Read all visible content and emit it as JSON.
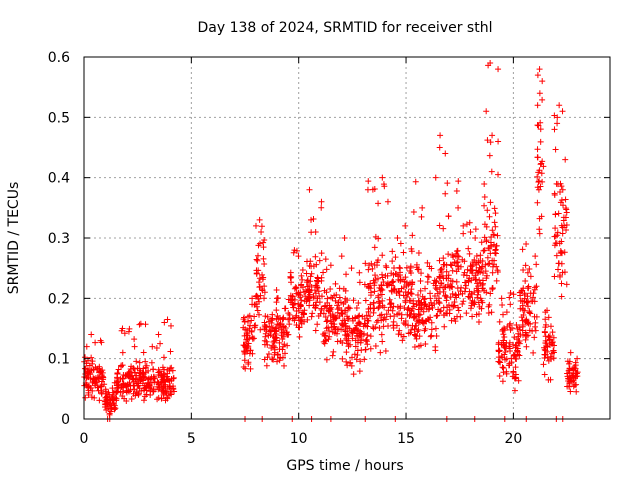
{
  "chart_data": {
    "type": "scatter",
    "title": "Day 138 of 2024, SRMTID for receiver sthl",
    "xlabel": "GPS time / hours",
    "ylabel": "SRMTID / TECUs",
    "xlim": [
      0,
      24.5
    ],
    "ylim": [
      0,
      0.6
    ],
    "xticks": [
      0,
      5,
      10,
      15,
      20
    ],
    "xtick_labels": [
      "0",
      "5",
      "10",
      "15",
      "20"
    ],
    "yticks": [
      0,
      0.1,
      0.2,
      0.3,
      0.4,
      0.5,
      0.6
    ],
    "ytick_labels": [
      "0",
      "0.1",
      "0.2",
      "0.3",
      "0.4",
      "0.5",
      "0.6"
    ],
    "grid": true,
    "marker": "+",
    "color": "#ff0000",
    "series": [
      {
        "name": "sthl",
        "segments": [
          {
            "x_start": 0.0,
            "x_end": 0.95,
            "y_base": 0.07,
            "y_spread": 0.03,
            "y_max": 0.14,
            "spikes": [
              0.13,
              0.14,
              0.12
            ]
          },
          {
            "x_start": 0.95,
            "x_end": 1.5,
            "y_base": 0.03,
            "y_spread": 0.02,
            "y_max": 0.07,
            "spikes": [
              0.06
            ]
          },
          {
            "x_start": 1.5,
            "x_end": 2.5,
            "y_base": 0.06,
            "y_spread": 0.025,
            "y_max": 0.15,
            "spikes": [
              0.15,
              0.12,
              0.11
            ]
          },
          {
            "x_start": 2.5,
            "x_end": 4.2,
            "y_base": 0.06,
            "y_spread": 0.025,
            "y_max": 0.17,
            "spikes": [
              0.165,
              0.14,
              0.12
            ]
          },
          {
            "x_start": 7.4,
            "x_end": 8.0,
            "y_base": 0.13,
            "y_spread": 0.05,
            "y_max": 0.2,
            "spikes": [
              0.2,
              0.19
            ]
          },
          {
            "x_start": 8.0,
            "x_end": 8.4,
            "y_base": 0.22,
            "y_spread": 0.07,
            "y_max": 0.33,
            "spikes": [
              0.33,
              0.32,
              0.31
            ]
          },
          {
            "x_start": 8.4,
            "x_end": 9.5,
            "y_base": 0.14,
            "y_spread": 0.04,
            "y_max": 0.22,
            "spikes": [
              0.21,
              0.2
            ]
          },
          {
            "x_start": 9.5,
            "x_end": 10.3,
            "y_base": 0.19,
            "y_spread": 0.05,
            "y_max": 0.28,
            "spikes": [
              0.28,
              0.27
            ]
          },
          {
            "x_start": 10.3,
            "x_end": 11.1,
            "y_base": 0.21,
            "y_spread": 0.06,
            "y_max": 0.38,
            "spikes": [
              0.38,
              0.36,
              0.33
            ]
          },
          {
            "x_start": 11.1,
            "x_end": 12.2,
            "y_base": 0.16,
            "y_spread": 0.05,
            "y_max": 0.3,
            "spikes": [
              0.3,
              0.27
            ]
          },
          {
            "x_start": 12.2,
            "x_end": 13.2,
            "y_base": 0.14,
            "y_spread": 0.05,
            "y_max": 0.26,
            "spikes": [
              0.25,
              0.24
            ]
          },
          {
            "x_start": 13.2,
            "x_end": 14.2,
            "y_base": 0.2,
            "y_spread": 0.07,
            "y_max": 0.4,
            "spikes": [
              0.4,
              0.38,
              0.36
            ]
          },
          {
            "x_start": 14.2,
            "x_end": 15.3,
            "y_base": 0.2,
            "y_spread": 0.06,
            "y_max": 0.32,
            "spikes": [
              0.32,
              0.3
            ]
          },
          {
            "x_start": 15.3,
            "x_end": 16.5,
            "y_base": 0.18,
            "y_spread": 0.06,
            "y_max": 0.4,
            "spikes": [
              0.4,
              0.35
            ]
          },
          {
            "x_start": 16.5,
            "x_end": 17.6,
            "y_base": 0.22,
            "y_spread": 0.07,
            "y_max": 0.47,
            "spikes": [
              0.47,
              0.45,
              0.44
            ]
          },
          {
            "x_start": 17.6,
            "x_end": 18.6,
            "y_base": 0.22,
            "y_spread": 0.06,
            "y_max": 0.33,
            "spikes": [
              0.32,
              0.3
            ]
          },
          {
            "x_start": 18.6,
            "x_end": 19.3,
            "y_base": 0.27,
            "y_spread": 0.08,
            "y_max": 0.59,
            "spikes": [
              0.59,
              0.58,
              0.51,
              0.47,
              0.46,
              0.41
            ]
          },
          {
            "x_start": 19.3,
            "x_end": 20.3,
            "y_base": 0.11,
            "y_spread": 0.05,
            "y_max": 0.22,
            "spikes": [
              0.2,
              0.19
            ]
          },
          {
            "x_start": 20.3,
            "x_end": 21.1,
            "y_base": 0.18,
            "y_spread": 0.06,
            "y_max": 0.3,
            "spikes": [
              0.29,
              0.27
            ]
          },
          {
            "x_start": 21.1,
            "x_end": 21.4,
            "y_base": 0.4,
            "y_spread": 0.1,
            "y_max": 0.58,
            "spikes": [
              0.58,
              0.57,
              0.56,
              0.54,
              0.52
            ]
          },
          {
            "x_start": 21.4,
            "x_end": 21.9,
            "y_base": 0.12,
            "y_spread": 0.04,
            "y_max": 0.2,
            "spikes": [
              0.18
            ]
          },
          {
            "x_start": 21.9,
            "x_end": 22.5,
            "y_base": 0.3,
            "y_spread": 0.09,
            "y_max": 0.52,
            "spikes": [
              0.52,
              0.51,
              0.5,
              0.49,
              0.48,
              0.43
            ]
          },
          {
            "x_start": 22.5,
            "x_end": 23.0,
            "y_base": 0.07,
            "y_spread": 0.025,
            "y_max": 0.11,
            "spikes": [
              0.11,
              0.1
            ]
          }
        ],
        "zero_points": [
          1.1,
          1.2,
          7.5,
          8.3,
          9.7,
          10.6,
          11.5,
          13.1,
          14.5,
          16.9,
          18.2,
          19.6,
          20.6,
          22.0,
          22.3
        ]
      }
    ]
  }
}
